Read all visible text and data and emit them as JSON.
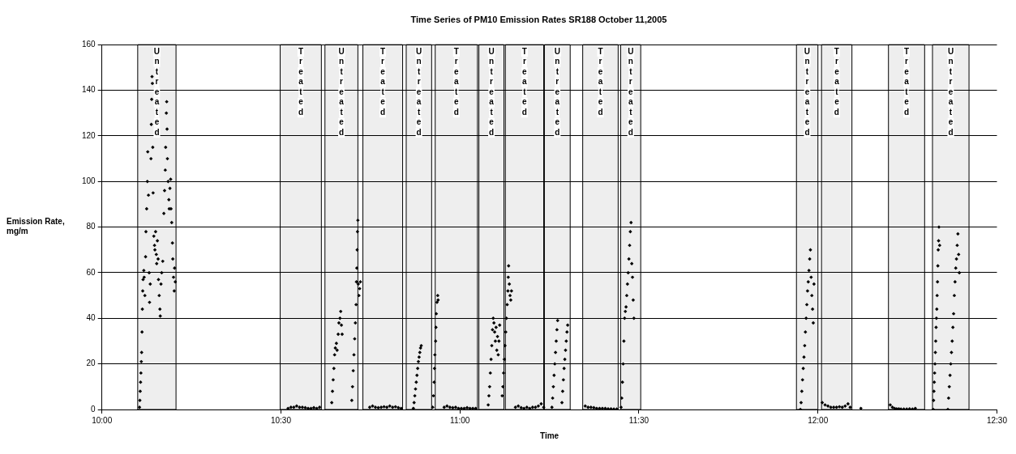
{
  "chart_data": {
    "type": "scatter",
    "title": "Time Series of PM10 Emission Rates SR188 October 11,2005",
    "xlabel": "Time",
    "ylabel": "Emission Rate, mg/m",
    "color": "#000000",
    "marker": "diamond",
    "grid": "y",
    "legend": false,
    "xlim": [
      10,
      12.5
    ],
    "xticks": [
      {
        "value": 10,
        "label": "10:00"
      },
      {
        "value": 10.5,
        "label": "10:30"
      },
      {
        "value": 11,
        "label": "11:00"
      },
      {
        "value": 11.5,
        "label": "11:30"
      },
      {
        "value": 12,
        "label": "12:00"
      },
      {
        "value": 12.5,
        "label": "12:30"
      }
    ],
    "ylim": [
      0,
      160
    ],
    "yticks": [
      0,
      20,
      40,
      60,
      80,
      100,
      120,
      140,
      160
    ],
    "bands": [
      {
        "axis": "x",
        "from": 10.1,
        "to": 10.207,
        "label": "Untreated",
        "color": "#eeeeee"
      },
      {
        "axis": "x",
        "from": 10.498,
        "to": 10.613,
        "label": "Treated",
        "color": "#eeeeee"
      },
      {
        "axis": "x",
        "from": 10.623,
        "to": 10.715,
        "label": "Untreated",
        "color": "#eeeeee"
      },
      {
        "axis": "x",
        "from": 10.729,
        "to": 10.84,
        "label": "Treated",
        "color": "#eeeeee"
      },
      {
        "axis": "x",
        "from": 10.85,
        "to": 10.921,
        "label": "Untreated",
        "color": "#eeeeee"
      },
      {
        "axis": "x",
        "from": 10.931,
        "to": 11.049,
        "label": "Treated",
        "color": "#eeeeee"
      },
      {
        "axis": "x",
        "from": 11.053,
        "to": 11.123,
        "label": "Untreated",
        "color": "#eeeeee"
      },
      {
        "axis": "x",
        "from": 11.127,
        "to": 11.234,
        "label": "Treated",
        "color": "#eeeeee"
      },
      {
        "axis": "x",
        "from": 11.236,
        "to": 11.308,
        "label": "Untreated",
        "color": "#eeeeee"
      },
      {
        "axis": "x",
        "from": 11.343,
        "to": 11.442,
        "label": "Treated",
        "color": "#eeeeee"
      },
      {
        "axis": "x",
        "from": 11.449,
        "to": 11.505,
        "label": "Untreated",
        "color": "#eeeeee"
      },
      {
        "axis": "x",
        "from": 11.94,
        "to": 12,
        "label": "Untreated",
        "color": "#eeeeee"
      },
      {
        "axis": "x",
        "from": 12.01,
        "to": 12.095,
        "label": "Treated",
        "color": "#eeeeee"
      },
      {
        "axis": "x",
        "from": 12.197,
        "to": 12.298,
        "label": "Treated",
        "color": "#eeeeee"
      },
      {
        "axis": "x",
        "from": 12.32,
        "to": 12.422,
        "label": "Untreated",
        "color": "#eeeeee"
      }
    ],
    "x": [
      10.105,
      10.106,
      10.107,
      10.108,
      10.109,
      10.11,
      10.111,
      10.112,
      10.113,
      10.114,
      10.115,
      10.117,
      10.118,
      10.12,
      10.122,
      10.123,
      10.125,
      10.127,
      10.128,
      10.13,
      10.132,
      10.133,
      10.135,
      10.137,
      10.138,
      10.139,
      10.14,
      10.141,
      10.142,
      10.143,
      10.145,
      10.147,
      10.148,
      10.15,
      10.152,
      10.153,
      10.155,
      10.157,
      10.158,
      10.16,
      10.162,
      10.163,
      10.165,
      10.167,
      10.17,
      10.173,
      10.175,
      10.177,
      10.178,
      10.18,
      10.181,
      10.182,
      10.183,
      10.185,
      10.187,
      10.188,
      10.19,
      10.192,
      10.193,
      10.195,
      10.197,
      10.198,
      10.2,
      10.202,
      10.203,
      10.205,
      10.52,
      10.528,
      10.536,
      10.544,
      10.552,
      10.56,
      10.568,
      10.576,
      10.584,
      10.592,
      10.6,
      10.608,
      10.642,
      10.644,
      10.646,
      10.648,
      10.65,
      10.652,
      10.655,
      10.657,
      10.66,
      10.662,
      10.665,
      10.667,
      10.669,
      10.671,
      10.698,
      10.7,
      10.702,
      10.704,
      10.706,
      10.708,
      10.71,
      10.711,
      10.712,
      10.713,
      10.714,
      10.715,
      10.716,
      10.718,
      10.72,
      10.722,
      10.748,
      10.756,
      10.764,
      10.772,
      10.78,
      10.788,
      10.796,
      10.804,
      10.812,
      10.82,
      10.828,
      10.836,
      10.87,
      10.872,
      10.874,
      10.876,
      10.878,
      10.88,
      10.882,
      10.884,
      10.886,
      10.888,
      10.89,
      10.892,
      10.924,
      10.926,
      10.928,
      10.929,
      10.93,
      10.932,
      10.933,
      10.934,
      10.936,
      10.938,
      10.939,
      10.956,
      10.964,
      10.972,
      10.98,
      10.988,
      10.996,
      11.004,
      11.012,
      11.02,
      11.028,
      11.036,
      11.044,
      11.079,
      11.081,
      11.083,
      11.085,
      11.087,
      11.089,
      11.091,
      11.093,
      11.095,
      11.097,
      11.099,
      11.101,
      11.103,
      11.105,
      11.107,
      11.109,
      11.111,
      11.118,
      11.12,
      11.122,
      11.124,
      11.126,
      11.128,
      11.13,
      11.132,
      11.134,
      11.135,
      11.136,
      11.138,
      11.14,
      11.142,
      11.144,
      11.155,
      11.163,
      11.171,
      11.179,
      11.187,
      11.195,
      11.203,
      11.211,
      11.219,
      11.227,
      11.234,
      11.257,
      11.259,
      11.261,
      11.263,
      11.265,
      11.267,
      11.269,
      11.271,
      11.273,
      11.285,
      11.287,
      11.289,
      11.291,
      11.293,
      11.295,
      11.297,
      11.299,
      11.301,
      11.35,
      11.358,
      11.366,
      11.374,
      11.382,
      11.39,
      11.398,
      11.406,
      11.414,
      11.422,
      11.43,
      11.438,
      11.45,
      11.452,
      11.454,
      11.456,
      11.458,
      11.46,
      11.462,
      11.464,
      11.466,
      11.468,
      11.47,
      11.472,
      11.474,
      11.476,
      11.478,
      11.48,
      11.482,
      11.484,
      11.486,
      11.951,
      11.953,
      11.955,
      11.957,
      11.959,
      11.961,
      11.963,
      11.965,
      11.967,
      11.969,
      11.971,
      11.973,
      11.975,
      11.977,
      11.979,
      11.981,
      11.983,
      11.985,
      11.987,
      11.989,
      12.012,
      12.02,
      12.028,
      12.036,
      12.044,
      12.052,
      12.06,
      12.068,
      12.076,
      12.084,
      12.09,
      12.12,
      12.202,
      12.208,
      12.214,
      12.22,
      12.226,
      12.232,
      12.24,
      12.248,
      12.256,
      12.264,
      12.272,
      12.322,
      12.323,
      12.324,
      12.325,
      12.326,
      12.327,
      12.328,
      12.329,
      12.33,
      12.331,
      12.332,
      12.333,
      12.334,
      12.335,
      12.336,
      12.337,
      12.338,
      12.34,
      12.363,
      12.365,
      12.367,
      12.369,
      12.371,
      12.373,
      12.375,
      12.377,
      12.379,
      12.381,
      12.383,
      12.385,
      12.387,
      12.389,
      12.391,
      12.393,
      12.395
    ],
    "values": [
      1,
      4,
      8,
      12,
      16,
      21,
      25,
      34,
      44,
      52,
      57,
      61,
      58,
      50,
      67,
      78,
      88,
      100,
      113,
      94,
      60,
      47,
      55,
      110,
      125,
      136,
      146,
      143,
      115,
      95,
      76,
      72,
      70,
      78,
      68,
      64,
      74,
      66,
      57,
      50,
      44,
      41,
      55,
      60,
      65,
      86,
      96,
      105,
      115,
      130,
      135,
      123,
      110,
      100,
      92,
      88,
      97,
      101,
      88,
      82,
      73,
      66,
      58,
      52,
      62,
      56,
      0.5,
      1,
      1,
      1.5,
      1,
      1,
      0.8,
      0.5,
      0.5,
      0.8,
      0.5,
      1,
      3,
      8,
      13,
      18,
      24,
      27,
      29,
      26,
      33,
      38,
      40,
      43,
      37,
      33,
      4,
      10,
      17,
      24,
      31,
      38,
      46,
      56,
      62,
      70,
      78,
      83,
      55,
      50,
      53,
      56,
      1,
      1.5,
      1,
      0.8,
      1,
      1.2,
      1,
      1.5,
      1,
      1.2,
      0.8,
      0.5,
      0.5,
      3,
      6,
      9,
      12,
      15,
      18,
      21,
      23,
      25,
      27,
      28,
      1,
      6,
      12,
      18,
      24,
      30,
      36,
      42,
      47,
      50,
      48,
      1,
      1.5,
      1,
      0.8,
      1,
      0.5,
      0.5,
      0.5,
      0.8,
      0.5,
      0.5,
      0.5,
      2,
      6,
      10,
      16,
      22,
      28,
      35,
      40,
      38,
      34,
      30,
      36,
      26,
      32,
      24,
      30,
      37,
      6,
      10,
      16,
      22,
      28,
      34,
      40,
      46,
      52,
      58,
      63,
      55,
      50,
      48,
      52,
      1,
      1.5,
      0.8,
      0.5,
      1,
      0.5,
      1,
      1,
      1.5,
      2.5,
      1,
      1,
      5,
      10,
      15,
      20,
      25,
      30,
      35,
      39,
      3,
      8,
      13,
      18,
      22,
      26,
      30,
      34,
      37,
      1.5,
      1,
      1,
      0.8,
      0.5,
      0.5,
      0.5,
      0.5,
      0.3,
      0.3,
      0.2,
      0.2,
      1,
      5,
      12,
      20,
      30,
      40,
      43,
      45,
      50,
      55,
      60,
      66,
      72,
      78,
      82,
      64,
      58,
      48,
      40,
      0,
      3,
      8,
      13,
      18,
      23,
      28,
      34,
      40,
      46,
      52,
      56,
      61,
      66,
      70,
      58,
      50,
      44,
      38,
      55,
      3,
      2,
      1.5,
      1,
      1,
      1,
      1.2,
      1,
      1.5,
      2.5,
      1,
      0.5,
      2,
      1,
      0.5,
      0.3,
      0.3,
      0.2,
      0.2,
      0.2,
      0.3,
      0.2,
      0.5,
      0,
      4,
      8,
      12,
      16,
      20,
      25,
      30,
      36,
      40,
      44,
      50,
      56,
      63,
      70,
      74,
      80,
      72,
      0,
      5,
      10,
      15,
      20,
      25,
      30,
      36,
      42,
      50,
      56,
      62,
      66,
      72,
      77,
      68,
      60
    ]
  }
}
